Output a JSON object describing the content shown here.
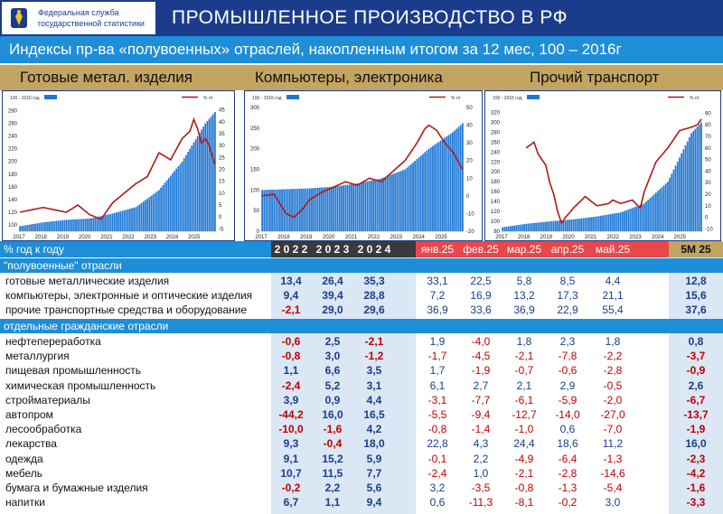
{
  "header": {
    "logo_line1": "Федеральная служба",
    "logo_line2": "государственной статистики",
    "title": "ПРОМЫШЛЕННОЕ ПРОИЗВОДСТВО В РФ"
  },
  "subtitle": "Индексы пр-ва «полувоенных» отраслей, накопленным итогом за 12 мес, 100 – 2016г",
  "panel_titles": [
    "Готовые метал. изделия",
    "Компьютеры, электроника",
    "Прочий транспорт"
  ],
  "colors": {
    "bar": "#1f77d4",
    "line": "#b01818",
    "header": "#1b3c8a",
    "accent": "#1e8ed8",
    "gold": "#c4a462",
    "red_head": "#e8484a",
    "dark_head": "#3a3a3a"
  },
  "chart_data": [
    {
      "type": "bar+line",
      "legend": {
        "bar": "100 - 2016 год",
        "line": "% г/г"
      },
      "x_ticks": [
        "2017",
        "2018",
        "2019",
        "2020",
        "2021",
        "2022",
        "2023",
        "2024",
        "2025"
      ],
      "y_left": {
        "ticks": [
          100,
          120,
          140,
          160,
          180,
          200,
          220,
          240,
          260,
          280
        ],
        "range": [
          90,
          285
        ]
      },
      "y_right": {
        "ticks": [
          -5,
          0,
          5,
          10,
          15,
          20,
          25,
          30,
          35,
          40,
          45
        ],
        "range": [
          -6,
          46
        ]
      },
      "bar_anchors": [
        [
          0,
          98
        ],
        [
          12,
          104
        ],
        [
          24,
          108
        ],
        [
          36,
          110
        ],
        [
          48,
          118
        ],
        [
          60,
          128
        ],
        [
          72,
          155
        ],
        [
          84,
          200
        ],
        [
          96,
          260
        ],
        [
          101,
          278
        ]
      ],
      "line_anchors": [
        [
          0,
          2
        ],
        [
          6,
          3
        ],
        [
          12,
          4
        ],
        [
          18,
          3
        ],
        [
          24,
          2
        ],
        [
          30,
          5
        ],
        [
          36,
          1
        ],
        [
          42,
          -1
        ],
        [
          48,
          6
        ],
        [
          54,
          10
        ],
        [
          60,
          14
        ],
        [
          66,
          17
        ],
        [
          72,
          27
        ],
        [
          78,
          24
        ],
        [
          84,
          33
        ],
        [
          88,
          36
        ],
        [
          90,
          41
        ],
        [
          92,
          37
        ],
        [
          94,
          31
        ],
        [
          96,
          33
        ],
        [
          98,
          30
        ],
        [
          101,
          22
        ]
      ]
    },
    {
      "type": "bar+line",
      "legend": {
        "bar": "100 - 2016 год",
        "line": "% г/г"
      },
      "x_ticks": [
        "2017",
        "2018",
        "2019",
        "2020",
        "2021",
        "2022",
        "2023",
        "2024",
        "2025"
      ],
      "y_left": {
        "ticks": [
          0,
          50,
          100,
          150,
          200,
          250,
          300
        ],
        "range": [
          0,
          300
        ]
      },
      "y_right": {
        "ticks": [
          -20,
          -10,
          0,
          10,
          20,
          30,
          40,
          50
        ],
        "range": [
          -20,
          50
        ]
      },
      "bar_anchors": [
        [
          0,
          100
        ],
        [
          24,
          104
        ],
        [
          36,
          108
        ],
        [
          48,
          116
        ],
        [
          60,
          128
        ],
        [
          72,
          150
        ],
        [
          84,
          200
        ],
        [
          96,
          240
        ],
        [
          101,
          262
        ]
      ],
      "line_anchors": [
        [
          0,
          0
        ],
        [
          6,
          1
        ],
        [
          12,
          -10
        ],
        [
          16,
          -12
        ],
        [
          20,
          -8
        ],
        [
          24,
          -2
        ],
        [
          30,
          2
        ],
        [
          36,
          5
        ],
        [
          42,
          8
        ],
        [
          48,
          6
        ],
        [
          54,
          10
        ],
        [
          60,
          8
        ],
        [
          66,
          14
        ],
        [
          72,
          20
        ],
        [
          78,
          30
        ],
        [
          82,
          38
        ],
        [
          84,
          40
        ],
        [
          88,
          37
        ],
        [
          92,
          30
        ],
        [
          96,
          25
        ],
        [
          101,
          15
        ]
      ]
    },
    {
      "type": "bar+line",
      "legend": {
        "bar": "100 - 2016 год",
        "line": "% г/г"
      },
      "x_ticks": [
        "2017",
        "2018",
        "2019",
        "2020",
        "2021",
        "2022",
        "2023",
        "2024",
        "2025"
      ],
      "y_left": {
        "ticks": [
          80,
          100,
          120,
          140,
          160,
          180,
          200,
          220,
          240,
          260,
          280,
          300,
          320
        ],
        "range": [
          80,
          330
        ]
      },
      "y_right": {
        "ticks": [
          -10,
          0,
          10,
          20,
          30,
          40,
          50,
          60,
          70,
          80,
          90
        ],
        "range": [
          -12,
          95
        ]
      },
      "bar_anchors": [
        [
          0,
          88
        ],
        [
          12,
          95
        ],
        [
          24,
          100
        ],
        [
          36,
          104
        ],
        [
          48,
          110
        ],
        [
          60,
          118
        ],
        [
          72,
          136
        ],
        [
          84,
          180
        ],
        [
          96,
          278
        ],
        [
          101,
          300
        ]
      ],
      "line_anchors": [
        [
          12,
          60
        ],
        [
          16,
          65
        ],
        [
          18,
          55
        ],
        [
          20,
          50
        ],
        [
          22,
          45
        ],
        [
          24,
          30
        ],
        [
          26,
          20
        ],
        [
          28,
          5
        ],
        [
          30,
          -5
        ],
        [
          32,
          0
        ],
        [
          36,
          8
        ],
        [
          42,
          18
        ],
        [
          48,
          10
        ],
        [
          54,
          12
        ],
        [
          56,
          15
        ],
        [
          60,
          12
        ],
        [
          66,
          15
        ],
        [
          70,
          8
        ],
        [
          72,
          22
        ],
        [
          78,
          48
        ],
        [
          84,
          60
        ],
        [
          90,
          75
        ],
        [
          96,
          78
        ],
        [
          99,
          80
        ],
        [
          101,
          85
        ]
      ]
    }
  ],
  "table": {
    "header": {
      "label": "% год к году",
      "years": [
        "2 0 2 2",
        "2 0 2 3",
        "2 0 2 4"
      ],
      "months": [
        "янв.25",
        "фев.25",
        "мар.25",
        "апр.25",
        "май.25"
      ],
      "total": "5М 25"
    },
    "section1": "\"полувоенные\" отрасли",
    "section2": "отдельные гражданские отрасли",
    "rows1": [
      {
        "name": "готовые металлические изделия",
        "v": [
          "13,4",
          "26,4",
          "35,3",
          "33,1",
          "22,5",
          "5,8",
          "8,5",
          "4,4",
          "12,8"
        ]
      },
      {
        "name": "компьютеры, электронные и оптические изделия",
        "v": [
          "9,4",
          "39,4",
          "28,8",
          "7,2",
          "16,9",
          "13,2",
          "17,3",
          "21,1",
          "15,6"
        ]
      },
      {
        "name": "прочие транспортные средства и оборудование",
        "v": [
          "-2,1",
          "29,0",
          "29,6",
          "36,9",
          "33,6",
          "36,9",
          "22,9",
          "55,4",
          "37,6"
        ]
      }
    ],
    "rows2": [
      {
        "name": "нефтепереработка",
        "v": [
          "-0,6",
          "2,5",
          "-2,1",
          "1,9",
          "-4,0",
          "1,8",
          "2,3",
          "1,8",
          "0,8"
        ]
      },
      {
        "name": "металлургия",
        "v": [
          "-0,8",
          "3,0",
          "-1,2",
          "-1,7",
          "-4,5",
          "-2,1",
          "-7,8",
          "-2,2",
          "-3,7"
        ]
      },
      {
        "name": "пищевая промышленность",
        "v": [
          "1,1",
          "6,6",
          "3,5",
          "1,7",
          "-1,9",
          "-0,7",
          "-0,6",
          "-2,8",
          "-0,9"
        ]
      },
      {
        "name": "химическая промышленность",
        "v": [
          "-2,4",
          "5,2",
          "3,1",
          "6,1",
          "2,7",
          "2,1",
          "2,9",
          "-0,5",
          "2,6"
        ]
      },
      {
        "name": "стройматериалы",
        "v": [
          "3,9",
          "0,9",
          "4,4",
          "-3,1",
          "-7,7",
          "-6,1",
          "-5,9",
          "-2,0",
          "-6,7"
        ]
      },
      {
        "name": "автопром",
        "v": [
          "-44,2",
          "16,0",
          "16,5",
          "-5,5",
          "-9,4",
          "-12,7",
          "-14,0",
          "-27,0",
          "-13,7"
        ]
      },
      {
        "name": "лесообработка",
        "v": [
          "-10,0",
          "-1,6",
          "4,2",
          "-0,8",
          "-1,4",
          "-1,0",
          "0,6",
          "-7,0",
          "-1,9"
        ]
      },
      {
        "name": "лекарства",
        "v": [
          "9,3",
          "-0,4",
          "18,0",
          "22,8",
          "4,3",
          "24,4",
          "18,6",
          "11,2",
          "16,0"
        ]
      },
      {
        "name": "одежда",
        "v": [
          "9,1",
          "15,2",
          "5,9",
          "-0,1",
          "2,2",
          "-4,9",
          "-6,4",
          "-1,3",
          "-2,3"
        ]
      },
      {
        "name": "мебель",
        "v": [
          "10,7",
          "11,5",
          "7,7",
          "-2,4",
          "1,0",
          "-2,1",
          "-2,8",
          "-14,6",
          "-4,2"
        ]
      },
      {
        "name": "бумага и бумажные изделия",
        "v": [
          "-0,2",
          "2,2",
          "5,6",
          "3,2",
          "-3,5",
          "-0,8",
          "-1,3",
          "-5,4",
          "-1,6"
        ]
      },
      {
        "name": "напитки",
        "v": [
          "6,7",
          "1,1",
          "9,4",
          "0,6",
          "-11,3",
          "-8,1",
          "-0,2",
          "3,0",
          "-3,3"
        ]
      }
    ]
  }
}
